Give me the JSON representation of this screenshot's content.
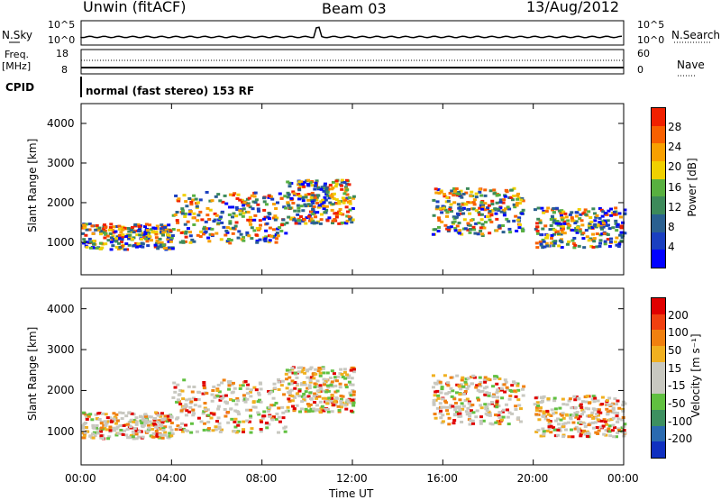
{
  "header": {
    "station": "Unwin (fitACF)",
    "beam": "Beam 03",
    "date": "13/Aug/2012"
  },
  "panels": {
    "nsky_label": "N.Sky",
    "nsky_ticks": [
      "10^5",
      "10^0"
    ],
    "nsearch_label": "N.Search",
    "nsearch_ticks": [
      "10^5",
      "10^0"
    ],
    "freq_label": "Freq.",
    "freq_unit": "[MHz]",
    "freq_ticks": [
      "18",
      "8"
    ],
    "nave_label": "Nave",
    "nave_ticks": [
      "60",
      "0"
    ],
    "cpid_label": "CPID",
    "cpid_text": "normal (fast stereo) 153 RF"
  },
  "chart_data": [
    {
      "type": "heatmap",
      "name_on_chart": "Power",
      "ylabel": "Slant Range [km]",
      "ylim": [
        180,
        4500
      ],
      "yticks": [
        "1000",
        "2000",
        "3000",
        "4000"
      ],
      "xticks": [
        "00:00",
        "04:00",
        "08:00",
        "12:00",
        "16:00",
        "20:00",
        "00:00"
      ],
      "colorbar": {
        "label": "Power [dB]",
        "ticks": [
          "28",
          "24",
          "20",
          "16",
          "12",
          "8",
          "4"
        ],
        "colors": [
          "#0000ff",
          "#1a3fc0",
          "#2a6090",
          "#3d8a5a",
          "#58b040",
          "#f0d000",
          "#f8a000",
          "#f86000",
          "#f02000"
        ]
      },
      "echo_bands": [
        {
          "from_hour": 0.0,
          "to_hour": 4.0,
          "range_from_km": 850,
          "range_to_km": 1500
        },
        {
          "from_hour": 4.0,
          "to_hour": 9.0,
          "range_from_km": 1000,
          "range_to_km": 2300
        },
        {
          "from_hour": 9.0,
          "to_hour": 12.0,
          "range_from_km": 1500,
          "range_to_km": 2600
        },
        {
          "from_hour": 15.5,
          "to_hour": 19.5,
          "range_from_km": 1200,
          "range_to_km": 2400
        },
        {
          "from_hour": 20.0,
          "to_hour": 24.0,
          "range_from_km": 900,
          "range_to_km": 1900
        }
      ]
    },
    {
      "type": "heatmap",
      "name_on_chart": "Velocity",
      "ylabel": "Slant Range [km]",
      "xlabel": "Time UT",
      "ylim": [
        180,
        4500
      ],
      "yticks": [
        "1000",
        "2000",
        "3000",
        "4000"
      ],
      "xticks": [
        "00:00",
        "04:00",
        "08:00",
        "12:00",
        "16:00",
        "20:00",
        "00:00"
      ],
      "colorbar": {
        "label": "Velocity [m s⁻¹]",
        "ticks": [
          "200",
          "100",
          "50",
          "15",
          "-15",
          "-50",
          "-100",
          "-200"
        ],
        "colors": [
          "#1030c0",
          "#2a6ab0",
          "#3d9060",
          "#60c040",
          "#c8c8c0",
          "#c8c8c0",
          "#f0b020",
          "#f08010",
          "#f04010",
          "#e00000"
        ]
      }
    }
  ]
}
